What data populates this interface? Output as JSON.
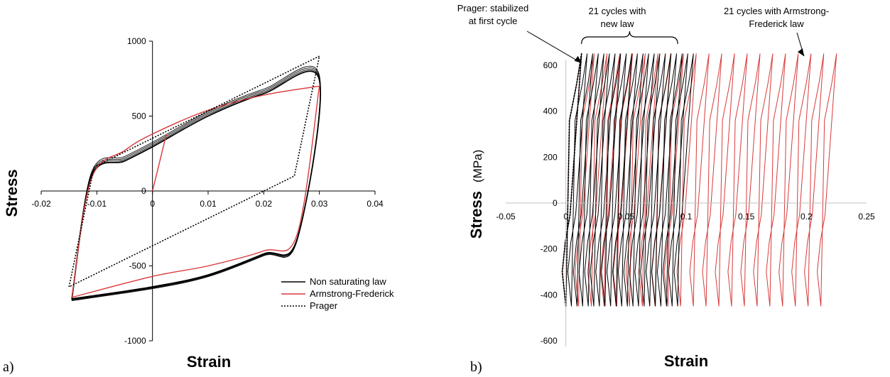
{
  "panel_labels": {
    "a": "a)",
    "b": "b)"
  },
  "chart_data": [
    {
      "type": "line",
      "panel": "a)",
      "xlabel": "Strain",
      "ylabel": "Stress",
      "xlim": [
        -0.02,
        0.04
      ],
      "ylim": [
        -1000,
        1000
      ],
      "xticks": [
        "-0.02",
        "-0.01",
        "0",
        "0.01",
        "0.02",
        "0.03",
        "0.04"
      ],
      "yticks": [
        "1000",
        "500",
        "0",
        "-500",
        "-1000"
      ],
      "grid": false,
      "legend_position": "bottom-right",
      "series": [
        {
          "name": "Non saturating law",
          "color": "#000000",
          "style": "solid",
          "loading": [
            [
              -0.0145,
              -720
            ],
            [
              -0.011,
              90
            ],
            [
              -0.005,
              200
            ],
            [
              0.0,
              295
            ],
            [
              0.01,
              500
            ],
            [
              0.02,
              650
            ],
            [
              0.03,
              740
            ]
          ],
          "unloading": [
            [
              0.03,
              740
            ],
            [
              0.026,
              -320
            ],
            [
              0.02,
              -420
            ],
            [
              0.01,
              -560
            ],
            [
              0.0,
              -640
            ],
            [
              -0.0145,
              -720
            ]
          ]
        },
        {
          "name": "Armstrong-Frederick",
          "color": "#d9393a",
          "style": "solid",
          "initial": [
            [
              0.0,
              0
            ],
            [
              0.0025,
              380
            ]
          ],
          "loading": [
            [
              -0.0145,
              -710
            ],
            [
              -0.011,
              80
            ],
            [
              -0.005,
              270
            ],
            [
              0.0,
              380
            ],
            [
              0.01,
              540
            ],
            [
              0.02,
              640
            ],
            [
              0.03,
              700
            ]
          ],
          "unloading": [
            [
              0.03,
              700
            ],
            [
              0.026,
              -290
            ],
            [
              0.02,
              -400
            ],
            [
              0.01,
              -500
            ],
            [
              0.0,
              -570
            ],
            [
              -0.0145,
              -710
            ]
          ]
        },
        {
          "name": "Prager",
          "color": "#000000",
          "style": "dotted",
          "loading": [
            [
              -0.015,
              -640
            ],
            [
              -0.0105,
              160
            ],
            [
              0.03,
              900
            ]
          ],
          "unloading": [
            [
              0.03,
              900
            ],
            [
              0.0255,
              100
            ],
            [
              -0.015,
              -640
            ]
          ]
        }
      ]
    },
    {
      "type": "line",
      "panel": "b)",
      "xlabel": "Strain",
      "ylabel": "Stress",
      "ylabel_unit": "(MPa)",
      "xlim": [
        -0.05,
        0.25
      ],
      "ylim": [
        -600,
        600
      ],
      "xticks": [
        "-0.05",
        "0",
        "0.05",
        "0.1",
        "0.15",
        "0.2",
        "0.25"
      ],
      "yticks": [
        "600",
        "400",
        "200",
        "0",
        "-200",
        "-400",
        "-600"
      ],
      "grid": false,
      "series": [
        {
          "name": "",
          "color": "#000000",
          "style": "solid",
          "cycles": 21,
          "first_strain": 0.0,
          "last_strain": 0.093,
          "max_stress": 650,
          "min_stress": -450
        },
        {
          "name": "",
          "color": "#d9393a",
          "style": "solid",
          "cycles": 21,
          "first_strain": 0.0,
          "last_strain": 0.212,
          "max_stress": 650,
          "min_stress": -450
        },
        {
          "name": "",
          "color": "#000000",
          "style": "dotted",
          "cycles": 1,
          "first_strain": 0.0,
          "last_strain": 0.012,
          "max_stress": 650,
          "min_stress": -450
        }
      ],
      "annotations": [
        {
          "lines": [
            "Prager: stabilized",
            "at first cycle"
          ],
          "points_to": [
            0.013,
            610
          ]
        },
        {
          "lines": [
            "21 cycles with",
            "new law"
          ],
          "brace_from": 0.013,
          "brace_to": 0.093
        },
        {
          "lines": [
            "21 cycles with Armstrong-",
            "Frederick law"
          ],
          "points_to": [
            0.198,
            640
          ]
        }
      ]
    }
  ]
}
